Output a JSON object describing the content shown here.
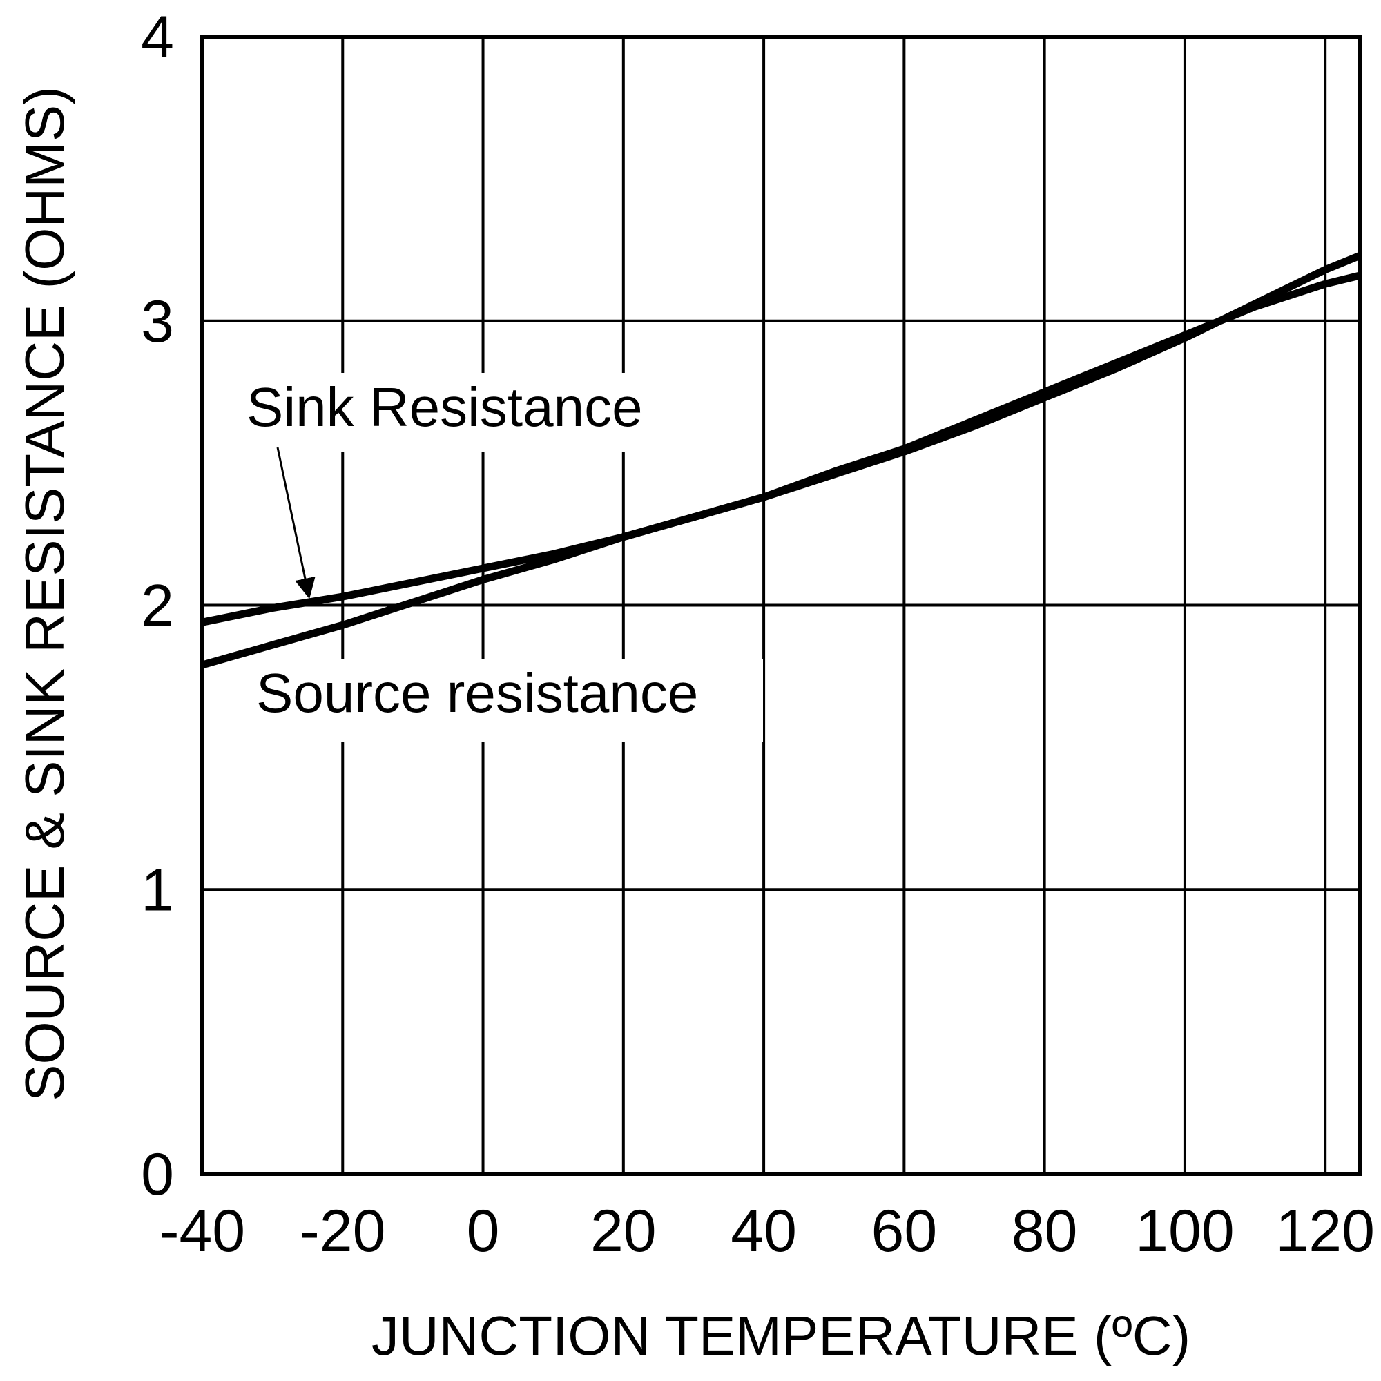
{
  "chart_data": {
    "type": "line",
    "title": "",
    "xlabel": "JUNCTION TEMPERATURE (ºC)",
    "ylabel": "SOURCE & SINK RESISTANCE (OHMS)",
    "xlim": [
      -40,
      125
    ],
    "ylim": [
      0,
      4
    ],
    "xticks": [
      -40,
      -20,
      0,
      20,
      40,
      60,
      80,
      100,
      120
    ],
    "yticks": [
      0,
      1,
      2,
      3,
      4
    ],
    "grid": true,
    "series": [
      {
        "name": "Sink Resistance",
        "x": [
          -40,
          -30,
          -20,
          -10,
          0,
          10,
          20,
          30,
          40,
          50,
          60,
          70,
          80,
          90,
          100,
          110,
          120,
          125
        ],
        "y": [
          1.94,
          1.99,
          2.03,
          2.08,
          2.13,
          2.18,
          2.24,
          2.31,
          2.38,
          2.47,
          2.55,
          2.65,
          2.75,
          2.85,
          2.95,
          3.05,
          3.13,
          3.16
        ]
      },
      {
        "name": "Source resistance",
        "x": [
          -40,
          -30,
          -20,
          -10,
          0,
          10,
          20,
          30,
          40,
          50,
          60,
          70,
          80,
          90,
          100,
          110,
          120,
          125
        ],
        "y": [
          1.79,
          1.86,
          1.93,
          2.01,
          2.09,
          2.16,
          2.24,
          2.31,
          2.38,
          2.46,
          2.54,
          2.63,
          2.73,
          2.83,
          2.94,
          3.06,
          3.18,
          3.23
        ]
      }
    ],
    "annotations": [
      {
        "text": "Sink Resistance",
        "series": "Sink Resistance",
        "arrow_to": [
          -24.8,
          2.01
        ]
      },
      {
        "text": "Source resistance",
        "series": "Source resistance"
      }
    ]
  }
}
